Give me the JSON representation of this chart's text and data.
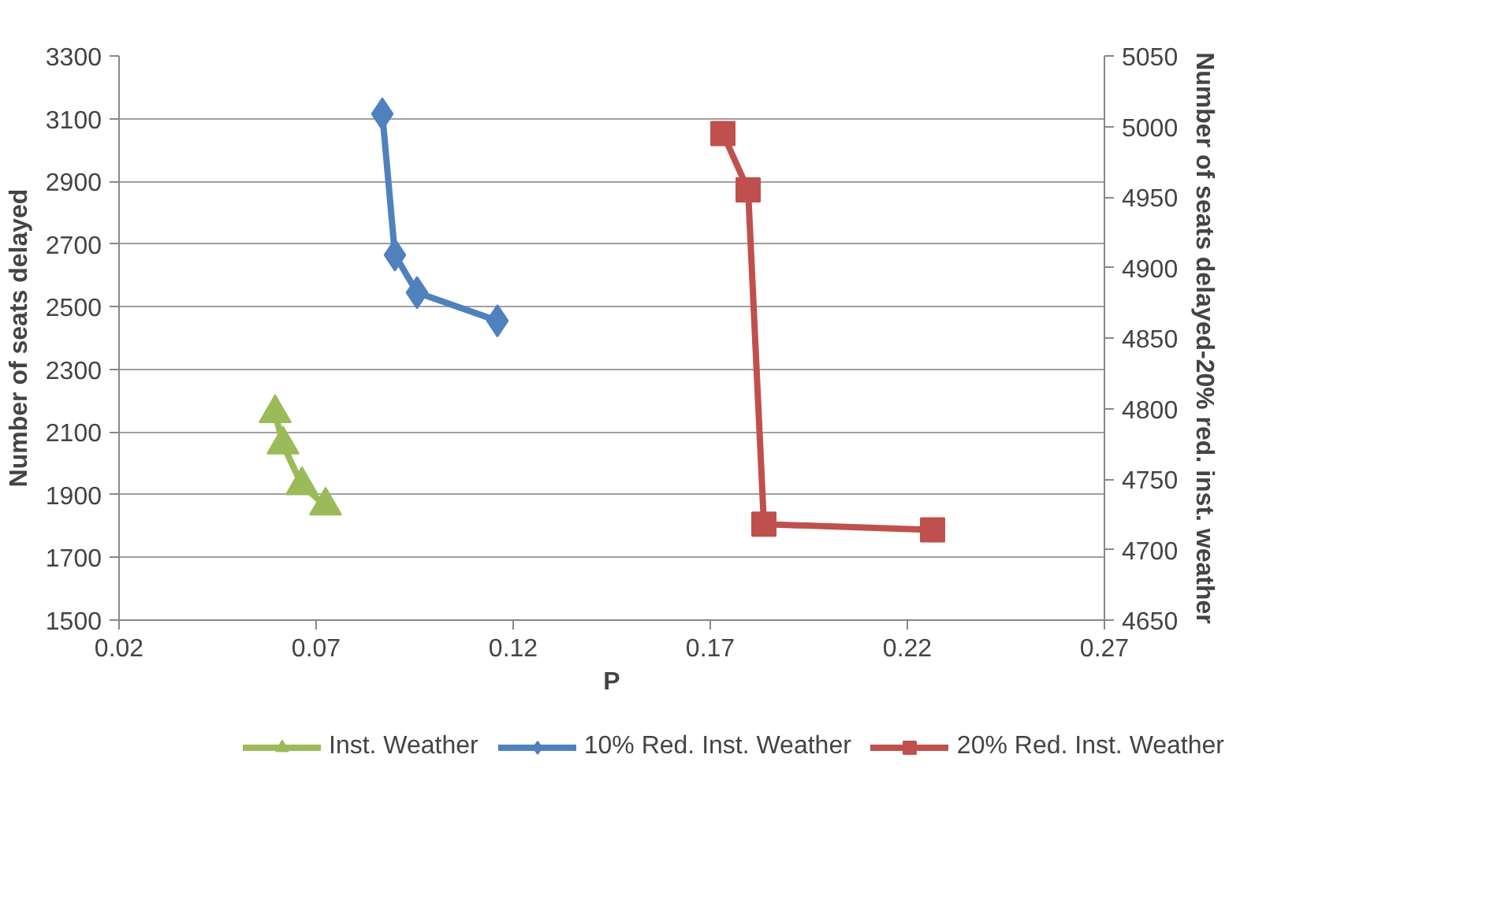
{
  "chart_data": {
    "type": "line",
    "xlabel": "P",
    "ylabel": "Number of seats delayed",
    "y2label": "Number of seats delayed-20% red. inst. weather",
    "xlim": [
      0.02,
      0.27
    ],
    "xticks": [
      0.02,
      0.07,
      0.12,
      0.17,
      0.22,
      0.27
    ],
    "ylim": [
      1500,
      3300
    ],
    "yticks": [
      1500,
      1700,
      1900,
      2100,
      2300,
      2500,
      2700,
      2900,
      3100,
      3300
    ],
    "y2lim": [
      4650,
      5050
    ],
    "y2ticks": [
      4650,
      4700,
      4750,
      4800,
      4850,
      4900,
      4950,
      5000,
      5050
    ],
    "grid": "y",
    "legend": "bottom",
    "line_style": "solid",
    "series": [
      {
        "name": "Inst. Weather",
        "color": "#9bbb59",
        "marker": "triangle",
        "x": [
          0.0596,
          0.0616,
          0.0664,
          0.0724
        ],
        "values": [
          2160,
          2060,
          1930,
          1865
        ]
      },
      {
        "name": "10% Red. Inst. Weather",
        "color": "#4f81bd",
        "marker": "diamond",
        "x": [
          0.0868,
          0.09,
          0.0956,
          0.116
        ],
        "values": [
          3115,
          2665,
          2545,
          2455
        ]
      },
      {
        "name": "20% Red. Inst. Weather",
        "color": "#c0504d",
        "marker": "square",
        "axis": "y2",
        "x": [
          0.1732,
          0.1796,
          0.1836,
          0.2264
        ],
        "values": [
          4995,
          4955,
          4718,
          4714
        ]
      }
    ]
  }
}
